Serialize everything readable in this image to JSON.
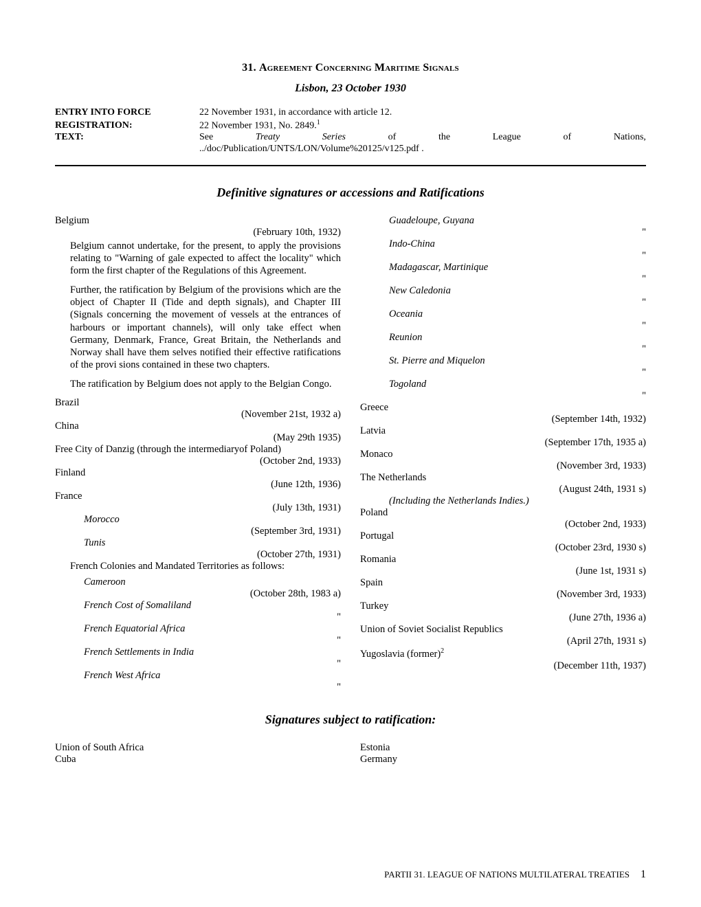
{
  "header": {
    "number": "31.",
    "title_main": " Agreement Concerning Maritime Signals",
    "subtitle": "Lisbon, 23 October 1930"
  },
  "meta": {
    "entry_into_force_label": "ENTRY INTO FORCE",
    "entry_into_force_value": "22 November 1931, in accordance with article 12.",
    "registration_label": "REGISTRATION:",
    "registration_value": "22 November 1931, No. 2849.",
    "registration_fn": "1",
    "text_label": "TEXT:",
    "text_value_words": [
      "See",
      "Treaty",
      "Series",
      "of",
      "the",
      "League",
      "of",
      "Nations,"
    ],
    "text_italic_words": [
      "Treaty",
      "Series"
    ],
    "text_path": "../doc/Publication/UNTS/LON/Volume%20125/v125.pdf ."
  },
  "section1_heading": "Definitive signatures or accessions and Ratifications",
  "belgium": {
    "name": "Belgium",
    "date": "(February 10th, 1932)",
    "notes": [
      "Belgium cannot undertake, for the present, to apply the provisions relating to \"Warning of gale expected to affect the locality\" which form the first chapter of the Regulations of this Agreement.",
      "Further, the ratification by Belgium of the provisions which are the object of Chapter II (Tide and depth signals), and Chapter III (Signals concerning the movement of vessels at the entrances of harbours or important channels), will only take effect when Germany, Denmark, France, Great Britain, the Netherlands and Norway shall have them selves notified their effective ratifications of the provi sions contained in these two chapters.",
      "The ratification by Belgium does not apply to the Belgian Congo."
    ]
  },
  "left_entries": [
    {
      "name": "Brazil",
      "date": "(November 21st, 1932 a)"
    },
    {
      "name": "China",
      "date": "(May 29th 1935)"
    },
    {
      "name": "Free City of Danzig (through the intermediaryof Poland)",
      "date": "(October 2nd, 1933)",
      "flat": true
    },
    {
      "name": "Finland",
      "date": "(June 12th, 1936)"
    },
    {
      "name": "France",
      "date": "(July 13th, 1931)"
    }
  ],
  "france_subs1": [
    {
      "name": "Morocco",
      "date": "(September 3rd, 1931)"
    },
    {
      "name": "Tunis",
      "date": "(October 27th, 1931)"
    }
  ],
  "france_group_label": "French Colonies and Mandated Territories as follows:",
  "france_subs2": [
    {
      "name": "Cameroon",
      "date": "(October 28th, 1983 a)"
    },
    {
      "name": "French Cost of Somaliland",
      "ditto": "\""
    },
    {
      "name": "French Equatorial Africa",
      "ditto": "\""
    },
    {
      "name": "French Settlements in India",
      "ditto": "\""
    },
    {
      "name": "French West Africa",
      "ditto": "\""
    },
    {
      "name": "Guadeloupe, Guyana",
      "ditto": "\""
    },
    {
      "name": "Indo-China",
      "ditto": "\""
    },
    {
      "name": "Madagascar, Martinique",
      "ditto": "\""
    },
    {
      "name": "New Caledonia",
      "ditto": "\""
    },
    {
      "name": "Oceania",
      "ditto": "\""
    },
    {
      "name": "Reunion",
      "ditto": "\""
    },
    {
      "name": "St. Pierre and Miquelon",
      "ditto": "\""
    },
    {
      "name": "Togoland",
      "ditto": "\""
    }
  ],
  "right_entries": [
    {
      "name": "Greece",
      "date": "(September 14th, 1932)"
    },
    {
      "name": "Latvia",
      "date": "(September 17th, 1935 a)"
    },
    {
      "name": "Monaco",
      "date": "(November 3rd, 1933)"
    },
    {
      "name": "The Netherlands",
      "date": "(August 24th, 1931 s)",
      "subnote": "(Including the Netherlands Indies.)"
    },
    {
      "name": "Poland",
      "date": "(October 2nd, 1933)"
    },
    {
      "name": "Portugal",
      "date": "(October 23rd, 1930 s)"
    },
    {
      "name": "Romania",
      "date": "(June 1st, 1931 s)"
    },
    {
      "name": "Spain",
      "date": "(November 3rd, 1933)"
    },
    {
      "name": "Turkey",
      "date": "(June 27th, 1936 a)"
    },
    {
      "name": "Union of Soviet Socialist Republics",
      "date": "(April 27th, 1931 s)"
    },
    {
      "name": "Yugoslavia (former)",
      "fn": "2",
      "date": "(December 11th, 1937)"
    }
  ],
  "section2_heading": "Signatures subject to ratification:",
  "sig_sub": [
    "Union of South Africa",
    "Cuba",
    "Estonia",
    "Germany"
  ],
  "footer": {
    "text": "PARTII 31.   LEAGUE OF NATIONS MULTILATERAL TREATIES",
    "page": "1"
  }
}
